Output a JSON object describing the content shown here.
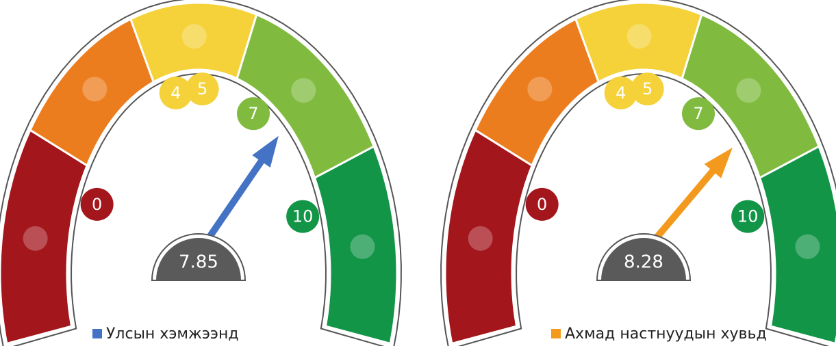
{
  "chart_data": [
    {
      "type": "gauge",
      "series": [
        {
          "name": "Улсын хэмжээнд",
          "color": "#4472c4",
          "values": [
            7.85
          ]
        }
      ],
      "ylim": [
        0,
        10
      ],
      "yticks": [
        0,
        4,
        5,
        7,
        10
      ],
      "band_colors": [
        "#a3161c",
        "#ec7d1e",
        "#f5d23a",
        "#80bb40",
        "#139548"
      ]
    },
    {
      "type": "gauge",
      "series": [
        {
          "name": "Ахмад настнуудын хувьд",
          "color": "#f39a1e",
          "values": [
            8.28
          ]
        }
      ],
      "ylim": [
        0,
        10
      ],
      "yticks": [
        0,
        4,
        5,
        7,
        10
      ],
      "band_colors": [
        "#a3161c",
        "#ec7d1e",
        "#f5d23a",
        "#80bb40",
        "#139548"
      ]
    }
  ]
}
